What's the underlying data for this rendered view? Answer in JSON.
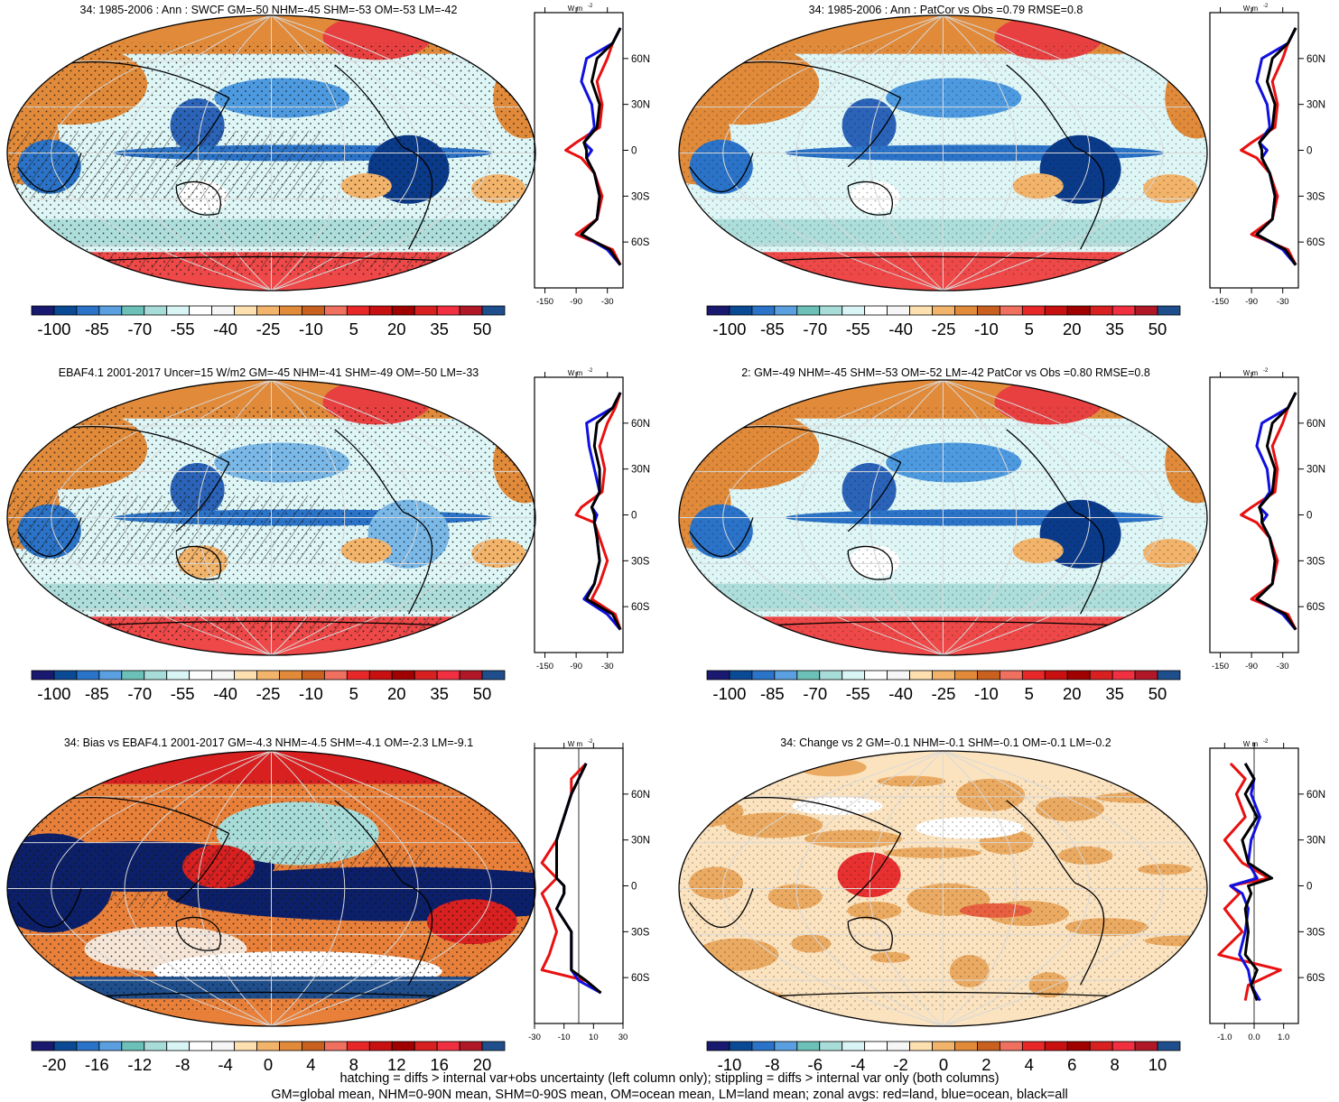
{
  "panels": [
    {
      "title": "34: 1985-2006 : Ann : SWCF GM=-50 NHM=-45 SHM=-53 OM=-53 LM=-42",
      "colorbar_ticks": [
        "-100",
        "-85",
        "-70",
        "-55",
        "-40",
        "-25",
        "-10",
        "5",
        "20",
        "35",
        "50"
      ],
      "zonal_ticks": [
        "-150",
        "-90",
        "-30"
      ],
      "hatching": true
    },
    {
      "title": "34: 1985-2006 : Ann : PatCor vs Obs =0.79 RMSE=0.8",
      "colorbar_ticks": [
        "-100",
        "-85",
        "-70",
        "-55",
        "-40",
        "-25",
        "-10",
        "5",
        "20",
        "35",
        "50"
      ],
      "zonal_ticks": [
        "-150",
        "-90",
        "-30"
      ],
      "hatching": false
    },
    {
      "title": "EBAF4.1 2001-2017 Uncer=15 W/m2 GM=-45 NHM=-41 SHM=-49 OM=-50 LM=-33",
      "colorbar_ticks": [
        "-100",
        "-85",
        "-70",
        "-55",
        "-40",
        "-25",
        "-10",
        "5",
        "20",
        "35",
        "50"
      ],
      "zonal_ticks": [
        "-150",
        "-90",
        "-30"
      ],
      "hatching": true
    },
    {
      "title": "2: GM=-49 NHM=-45 SHM=-53 OM=-52 LM=-42 PatCor vs Obs =0.80 RMSE=0.8",
      "colorbar_ticks": [
        "-100",
        "-85",
        "-70",
        "-55",
        "-40",
        "-25",
        "-10",
        "5",
        "20",
        "35",
        "50"
      ],
      "zonal_ticks": [
        "-150",
        "-90",
        "-30"
      ],
      "hatching": false
    },
    {
      "title": "34: Bias vs EBAF4.1 2001-2017 GM=-4.3 NHM=-4.5 SHM=-4.1 OM=-2.3 LM=-9.1",
      "colorbar_ticks": [
        "-20",
        "-16",
        "-12",
        "-8",
        "-4",
        "0",
        "4",
        "8",
        "12",
        "16",
        "20"
      ],
      "zonal_ticks": [
        "-30",
        "-10",
        "10",
        "30"
      ],
      "hatching": true
    },
    {
      "title": "34: Change vs 2 GM=-0.1 NHM=-0.1 SHM=-0.1 OM=-0.1 LM=-0.2",
      "colorbar_ticks": [
        "-10",
        "-8",
        "-6",
        "-4",
        "-2",
        "0",
        "2",
        "4",
        "6",
        "8",
        "10"
      ],
      "zonal_ticks": [
        "-1.0",
        "0.0",
        "1.0"
      ],
      "hatching": false
    }
  ],
  "lat_ticks": [
    "60N",
    "30N",
    "0",
    "30S",
    "60S"
  ],
  "units_label": "W m",
  "units_exp": "-2",
  "colorbar_colors": [
    "#191970",
    "#0a4a94",
    "#2a73c8",
    "#5aa0e0",
    "#6cc0b8",
    "#a8dcd8",
    "#d8f4f4",
    "#ffffff",
    "#f6f6f6",
    "#fde0b0",
    "#f2b36a",
    "#e08a3a",
    "#c96020",
    "#f07060",
    "#e82828",
    "#c81010",
    "#a00000",
    "#d82020",
    "#f03040",
    "#b01828",
    "#1f4e8c"
  ],
  "chart_data": [
    {
      "type": "heatmap",
      "title": "34: 1985-2006 : Ann : SWCF GM=-50 NHM=-45 SHM=-53 OM=-53 LM=-42",
      "zonal_mean": {
        "lat": [
          80,
          70,
          60,
          45,
          30,
          15,
          5,
          0,
          -5,
          -15,
          -30,
          -45,
          -55,
          -65,
          -75
        ],
        "land": [
          -5,
          -20,
          -30,
          -50,
          -40,
          -45,
          -90,
          -110,
          -80,
          -55,
          -40,
          -50,
          -90,
          -20,
          -5
        ],
        "ocean": [
          -5,
          -20,
          -70,
          -80,
          -60,
          -55,
          -75,
          -60,
          -70,
          -55,
          -45,
          -50,
          -80,
          -30,
          -5
        ],
        "all": [
          -5,
          -20,
          -50,
          -60,
          -45,
          -50,
          -75,
          -70,
          -70,
          -55,
          -45,
          -50,
          -80,
          -25,
          -5
        ]
      }
    },
    {
      "type": "heatmap",
      "title": "34: 1985-2006 : Ann : PatCor vs Obs =0.79 RMSE=0.8",
      "zonal_mean": {
        "lat": [
          80,
          70,
          60,
          45,
          30,
          15,
          5,
          0,
          -5,
          -15,
          -30,
          -45,
          -55,
          -65,
          -75
        ],
        "land": [
          -5,
          -20,
          -30,
          -50,
          -40,
          -45,
          -90,
          -110,
          -80,
          -55,
          -40,
          -50,
          -90,
          -20,
          -5
        ],
        "ocean": [
          -5,
          -20,
          -70,
          -80,
          -60,
          -55,
          -75,
          -60,
          -70,
          -55,
          -45,
          -50,
          -80,
          -30,
          -5
        ],
        "all": [
          -5,
          -20,
          -50,
          -60,
          -45,
          -50,
          -75,
          -70,
          -70,
          -55,
          -45,
          -50,
          -80,
          -25,
          -5
        ]
      }
    },
    {
      "type": "heatmap",
      "title": "EBAF4.1 2001-2017 Uncer=15 W/m2 GM=-45 NHM=-41 SHM=-49 OM=-50 LM=-33",
      "zonal_mean": {
        "lat": [
          80,
          70,
          60,
          45,
          30,
          15,
          5,
          0,
          -5,
          -15,
          -30,
          -45,
          -55,
          -65,
          -75
        ],
        "land": [
          -5,
          -15,
          -30,
          -45,
          -35,
          -40,
          -80,
          -90,
          -55,
          -45,
          -30,
          -45,
          -60,
          -15,
          -5
        ],
        "ocean": [
          -5,
          -20,
          -70,
          -65,
          -55,
          -45,
          -60,
          -50,
          -55,
          -50,
          -45,
          -55,
          -75,
          -30,
          -5
        ],
        "all": [
          -5,
          -20,
          -50,
          -55,
          -45,
          -45,
          -60,
          -55,
          -55,
          -50,
          -45,
          -55,
          -70,
          -20,
          -5
        ]
      }
    },
    {
      "type": "heatmap",
      "title": "2: GM=-49 NHM=-45 SHM=-53 OM=-52 LM=-42 PatCor vs Obs =0.80 RMSE=0.8",
      "zonal_mean": {
        "lat": [
          80,
          70,
          60,
          45,
          30,
          15,
          5,
          0,
          -5,
          -15,
          -30,
          -45,
          -55,
          -65,
          -75
        ],
        "land": [
          -5,
          -20,
          -30,
          -50,
          -40,
          -45,
          -90,
          -110,
          -80,
          -55,
          -40,
          -50,
          -90,
          -20,
          -5
        ],
        "ocean": [
          -5,
          -20,
          -70,
          -80,
          -60,
          -55,
          -75,
          -60,
          -70,
          -55,
          -45,
          -50,
          -80,
          -30,
          -5
        ],
        "all": [
          -5,
          -20,
          -50,
          -60,
          -45,
          -50,
          -75,
          -70,
          -70,
          -55,
          -45,
          -50,
          -80,
          -25,
          -5
        ]
      }
    },
    {
      "type": "heatmap",
      "title": "34: Bias vs EBAF4.1 2001-2017 GM=-4.3 NHM=-4.5 SHM=-4.1 OM=-2.3 LM=-9.1",
      "zonal_mean": {
        "lat": [
          80,
          70,
          60,
          45,
          30,
          15,
          5,
          0,
          -5,
          -15,
          -30,
          -45,
          -55,
          -62,
          -70
        ],
        "land": [
          5,
          -5,
          -5,
          -10,
          -15,
          -25,
          -15,
          -20,
          -25,
          -20,
          -15,
          -20,
          -25,
          5,
          15
        ],
        "ocean": [
          5,
          0,
          -5,
          -10,
          -15,
          -15,
          -15,
          -10,
          -10,
          -15,
          -5,
          -5,
          -5,
          0,
          15
        ],
        "all": [
          5,
          0,
          -5,
          -10,
          -15,
          -15,
          -15,
          -10,
          -10,
          -15,
          -5,
          -5,
          -5,
          5,
          15
        ]
      }
    },
    {
      "type": "heatmap",
      "title": "34: Change vs 2 GM=-0.1 NHM=-0.1 SHM=-0.1 OM=-0.1 LM=-0.2",
      "zonal_mean": {
        "lat": [
          80,
          70,
          60,
          45,
          30,
          15,
          5,
          0,
          -5,
          -15,
          -30,
          -45,
          -55,
          -65,
          -75
        ],
        "land": [
          -0.8,
          -0.3,
          -0.6,
          -0.3,
          -1.0,
          -0.4,
          0.5,
          -0.8,
          -0.5,
          -1.0,
          -0.4,
          -1.2,
          0.9,
          -0.2,
          -0.3
        ],
        "ocean": [
          -0.3,
          0.0,
          -0.1,
          0.2,
          -0.1,
          -0.2,
          0.1,
          -0.8,
          -0.4,
          -0.2,
          -0.3,
          -0.5,
          -0.2,
          -0.1,
          0.2
        ],
        "all": [
          -0.3,
          0.0,
          -0.3,
          0.1,
          -0.4,
          -0.2,
          0.6,
          -0.2,
          -0.1,
          -0.3,
          -0.2,
          -0.3,
          0.1,
          -0.1,
          0.1
        ]
      }
    }
  ],
  "footer_line1": "hatching = diffs > internal var+obs uncertainty (left column only); stippling = diffs > internal var only (both columns)",
  "footer_line2": "GM=global mean, NHM=0-90N mean, SHM=0-90S mean, OM=ocean mean, LM=land mean; zonal avgs: red=land, blue=ocean, black=all"
}
